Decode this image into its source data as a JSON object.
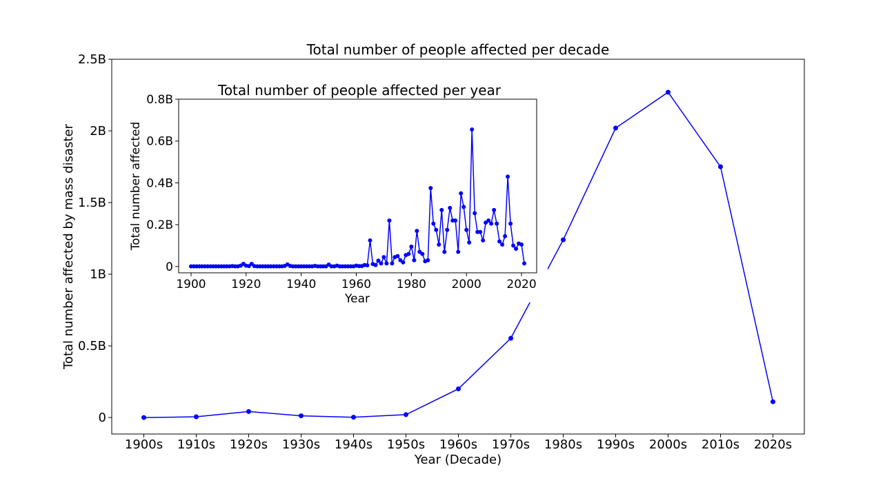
{
  "chart_data": [
    {
      "type": "line",
      "title": "Total number of people affected per decade",
      "xlabel": "Year (Decade)",
      "ylabel": "Total number affected by mass disaster",
      "categories": [
        "1900s",
        "1910s",
        "1920s",
        "1930s",
        "1940s",
        "1950s",
        "1960s",
        "1970s",
        "1980s",
        "1990s",
        "2000s",
        "2010s",
        "2020s"
      ],
      "values": [
        0.0,
        0.005,
        0.042,
        0.012,
        0.002,
        0.02,
        0.2,
        0.553,
        1.24,
        2.02,
        2.27,
        1.75,
        0.11
      ],
      "value_unit": "B",
      "ylim": [
        -0.115,
        2.5
      ],
      "yticks": [
        0,
        0.5,
        1,
        1.5,
        2,
        2.5
      ],
      "ytick_labels": [
        "0",
        "0.5B",
        "1B",
        "1.5B",
        "2B",
        "2.5B"
      ],
      "color": "#0000ff",
      "grid": false,
      "marker": "circle"
    },
    {
      "type": "line",
      "title": "Total number of people affected per year",
      "xlabel": "Year",
      "ylabel": "Total number affected",
      "x": [
        1900,
        1901,
        1902,
        1903,
        1904,
        1905,
        1906,
        1907,
        1908,
        1909,
        1910,
        1911,
        1912,
        1913,
        1914,
        1915,
        1916,
        1917,
        1918,
        1919,
        1920,
        1921,
        1922,
        1923,
        1924,
        1925,
        1926,
        1927,
        1928,
        1929,
        1930,
        1931,
        1932,
        1933,
        1934,
        1935,
        1936,
        1937,
        1938,
        1939,
        1940,
        1941,
        1942,
        1943,
        1944,
        1945,
        1946,
        1947,
        1948,
        1949,
        1950,
        1951,
        1952,
        1953,
        1954,
        1955,
        1956,
        1957,
        1958,
        1959,
        1960,
        1961,
        1962,
        1963,
        1964,
        1965,
        1966,
        1967,
        1968,
        1969,
        1970,
        1971,
        1972,
        1973,
        1974,
        1975,
        1976,
        1977,
        1978,
        1979,
        1980,
        1981,
        1982,
        1983,
        1984,
        1985,
        1986,
        1987,
        1988,
        1989,
        1990,
        1991,
        1992,
        1993,
        1994,
        1995,
        1996,
        1997,
        1998,
        1999,
        2000,
        2001,
        2002,
        2003,
        2004,
        2005,
        2006,
        2007,
        2008,
        2009,
        2010,
        2011,
        2012,
        2013,
        2014,
        2015,
        2016,
        2017,
        2018,
        2019,
        2020,
        2021
      ],
      "values": [
        0.001,
        0.001,
        0.001,
        0.001,
        0.001,
        0.001,
        0.001,
        0.001,
        0.001,
        0.001,
        0.001,
        0.001,
        0.001,
        0.001,
        0.001,
        0.002,
        0.001,
        0.001,
        0.004,
        0.013,
        0.004,
        0.002,
        0.013,
        0.002,
        0.001,
        0.001,
        0.001,
        0.001,
        0.001,
        0.001,
        0.001,
        0.001,
        0.001,
        0.001,
        0.003,
        0.01,
        0.003,
        0.001,
        0.001,
        0.001,
        0.001,
        0.001,
        0.001,
        0.001,
        0.001,
        0.003,
        0.001,
        0.001,
        0.001,
        0.001,
        0.009,
        0.001,
        0.001,
        0.004,
        0.001,
        0.001,
        0.001,
        0.001,
        0.001,
        0.001,
        0.004,
        0.002,
        0.002,
        0.007,
        0.006,
        0.125,
        0.012,
        0.007,
        0.028,
        0.015,
        0.045,
        0.015,
        0.22,
        0.015,
        0.045,
        0.05,
        0.03,
        0.02,
        0.055,
        0.06,
        0.095,
        0.03,
        0.17,
        0.07,
        0.06,
        0.025,
        0.03,
        0.375,
        0.205,
        0.175,
        0.105,
        0.27,
        0.07,
        0.175,
        0.28,
        0.22,
        0.22,
        0.07,
        0.35,
        0.285,
        0.175,
        0.115,
        0.655,
        0.255,
        0.165,
        0.165,
        0.125,
        0.21,
        0.22,
        0.205,
        0.27,
        0.205,
        0.12,
        0.105,
        0.145,
        0.43,
        0.205,
        0.1,
        0.085,
        0.11,
        0.105,
        0.015
      ],
      "value_unit": "B",
      "xlim": [
        1895.5,
        2025.5
      ],
      "xticks": [
        1900,
        1920,
        1940,
        1960,
        1980,
        2000,
        2020
      ],
      "ylim": [
        -0.03,
        0.8
      ],
      "yticks": [
        0,
        0.2,
        0.4,
        0.6,
        0.8
      ],
      "ytick_labels": [
        "0",
        "0.2B",
        "0.4B",
        "0.6B",
        "0.8B"
      ],
      "color": "#0000ff",
      "grid": false,
      "marker": "circle"
    }
  ]
}
